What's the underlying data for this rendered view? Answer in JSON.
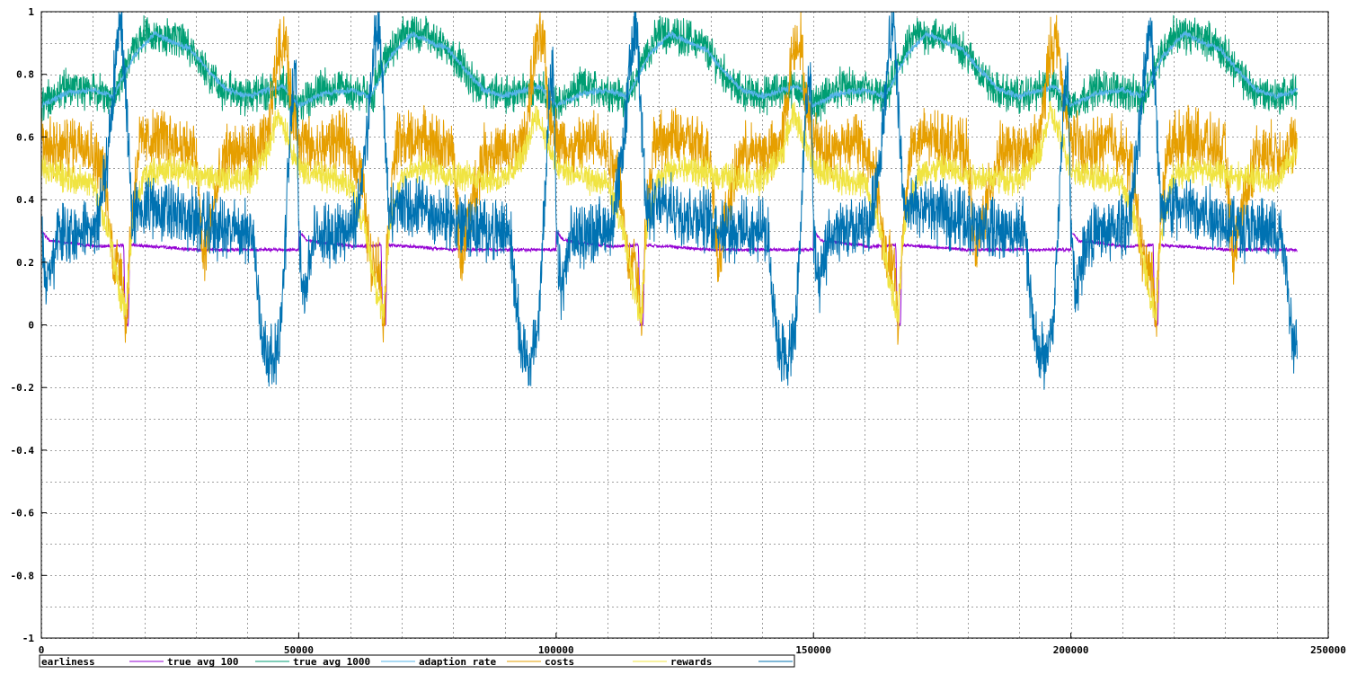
{
  "chart_data": {
    "type": "line",
    "title": "",
    "xlabel": "",
    "ylabel": "",
    "xlim": [
      0,
      250000
    ],
    "ylim": [
      -1,
      1
    ],
    "x_ticks": [
      0,
      50000,
      100000,
      150000,
      200000,
      250000
    ],
    "x_tick_labels": [
      "0",
      "50000",
      "100000",
      "150000",
      "200000",
      "250000"
    ],
    "y_ticks": [
      -1,
      -0.8,
      -0.6,
      -0.4,
      -0.2,
      0,
      0.2,
      0.4,
      0.6,
      0.8,
      1
    ],
    "y_tick_labels": [
      "-1",
      "-0.8",
      "-0.6",
      "-0.4",
      "-0.2",
      "0",
      "0.2",
      "0.4",
      "0.6",
      "0.8",
      "1"
    ],
    "grid": true,
    "legend_position": "bottom",
    "x_data_end": 244000,
    "cycle_period": 50000,
    "series": [
      {
        "name": "earliness",
        "color": "#9400d3",
        "noise": 0.004,
        "profile": [
          [
            0,
            0.3
          ],
          [
            1500,
            0.27
          ],
          [
            6000,
            0.26
          ],
          [
            11000,
            0.25
          ],
          [
            16000,
            0.255
          ],
          [
            16300,
            0.0
          ],
          [
            16900,
            0.0
          ],
          [
            17200,
            0.255
          ],
          [
            22000,
            0.25
          ],
          [
            30000,
            0.24
          ],
          [
            40000,
            0.24
          ],
          [
            50000,
            0.24
          ]
        ]
      },
      {
        "name": "true avg 100",
        "color": "#009e73",
        "noise": 0.045,
        "profile": [
          [
            0,
            0.7
          ],
          [
            5000,
            0.76
          ],
          [
            10000,
            0.75
          ],
          [
            14000,
            0.72
          ],
          [
            17000,
            0.85
          ],
          [
            20000,
            0.93
          ],
          [
            25000,
            0.92
          ],
          [
            28000,
            0.9
          ],
          [
            31000,
            0.84
          ],
          [
            35000,
            0.75
          ],
          [
            40000,
            0.73
          ],
          [
            44000,
            0.75
          ],
          [
            47000,
            0.76
          ],
          [
            49000,
            0.7
          ],
          [
            50000,
            0.7
          ]
        ]
      },
      {
        "name": "true avg 1000",
        "color": "#56b4e9",
        "noise": 0.008,
        "profile": [
          [
            0,
            0.7
          ],
          [
            5000,
            0.74
          ],
          [
            10000,
            0.75
          ],
          [
            14000,
            0.73
          ],
          [
            18000,
            0.86
          ],
          [
            22000,
            0.93
          ],
          [
            26000,
            0.9
          ],
          [
            29000,
            0.88
          ],
          [
            32000,
            0.82
          ],
          [
            36000,
            0.75
          ],
          [
            40000,
            0.73
          ],
          [
            44000,
            0.75
          ],
          [
            47000,
            0.76
          ],
          [
            49000,
            0.72
          ],
          [
            50000,
            0.7
          ]
        ]
      },
      {
        "name": "adaption rate",
        "color": "#e69f00",
        "noise": 0.07,
        "profile": [
          [
            0,
            0.6
          ],
          [
            3000,
            0.55
          ],
          [
            8000,
            0.6
          ],
          [
            12000,
            0.5
          ],
          [
            14000,
            0.2
          ],
          [
            15500,
            0.2
          ],
          [
            16500,
            0.0
          ],
          [
            17500,
            0.35
          ],
          [
            19000,
            0.58
          ],
          [
            24000,
            0.6
          ],
          [
            30000,
            0.55
          ],
          [
            31500,
            0.2
          ],
          [
            33000,
            0.35
          ],
          [
            36000,
            0.55
          ],
          [
            42000,
            0.55
          ],
          [
            44000,
            0.6
          ],
          [
            46000,
            0.88
          ],
          [
            47500,
            0.92
          ],
          [
            48500,
            0.7
          ],
          [
            50000,
            0.6
          ]
        ]
      },
      {
        "name": "costs",
        "color": "#f0e442",
        "noise": 0.035,
        "profile": [
          [
            0,
            0.5
          ],
          [
            5000,
            0.47
          ],
          [
            10000,
            0.45
          ],
          [
            13000,
            0.3
          ],
          [
            15000,
            0.12
          ],
          [
            16500,
            0.02
          ],
          [
            17500,
            0.3
          ],
          [
            20000,
            0.48
          ],
          [
            25000,
            0.5
          ],
          [
            30000,
            0.48
          ],
          [
            35000,
            0.47
          ],
          [
            40000,
            0.46
          ],
          [
            44000,
            0.55
          ],
          [
            46000,
            0.68
          ],
          [
            48000,
            0.6
          ],
          [
            50000,
            0.5
          ]
        ]
      },
      {
        "name": "rewards",
        "color": "#0072b2",
        "noise": 0.075,
        "profile": [
          [
            0,
            0.3
          ],
          [
            1000,
            0.1
          ],
          [
            3000,
            0.28
          ],
          [
            8000,
            0.3
          ],
          [
            11000,
            0.32
          ],
          [
            13000,
            0.55
          ],
          [
            14500,
            0.85
          ],
          [
            15500,
            0.98
          ],
          [
            16500,
            0.72
          ],
          [
            17500,
            0.35
          ],
          [
            20000,
            0.38
          ],
          [
            25000,
            0.36
          ],
          [
            30000,
            0.33
          ],
          [
            36000,
            0.3
          ],
          [
            41000,
            0.3
          ],
          [
            43000,
            -0.05
          ],
          [
            45000,
            -0.12
          ],
          [
            46500,
            -0.02
          ],
          [
            47500,
            0.3
          ],
          [
            48500,
            0.7
          ],
          [
            49500,
            0.8
          ],
          [
            50000,
            0.3
          ]
        ]
      }
    ]
  }
}
